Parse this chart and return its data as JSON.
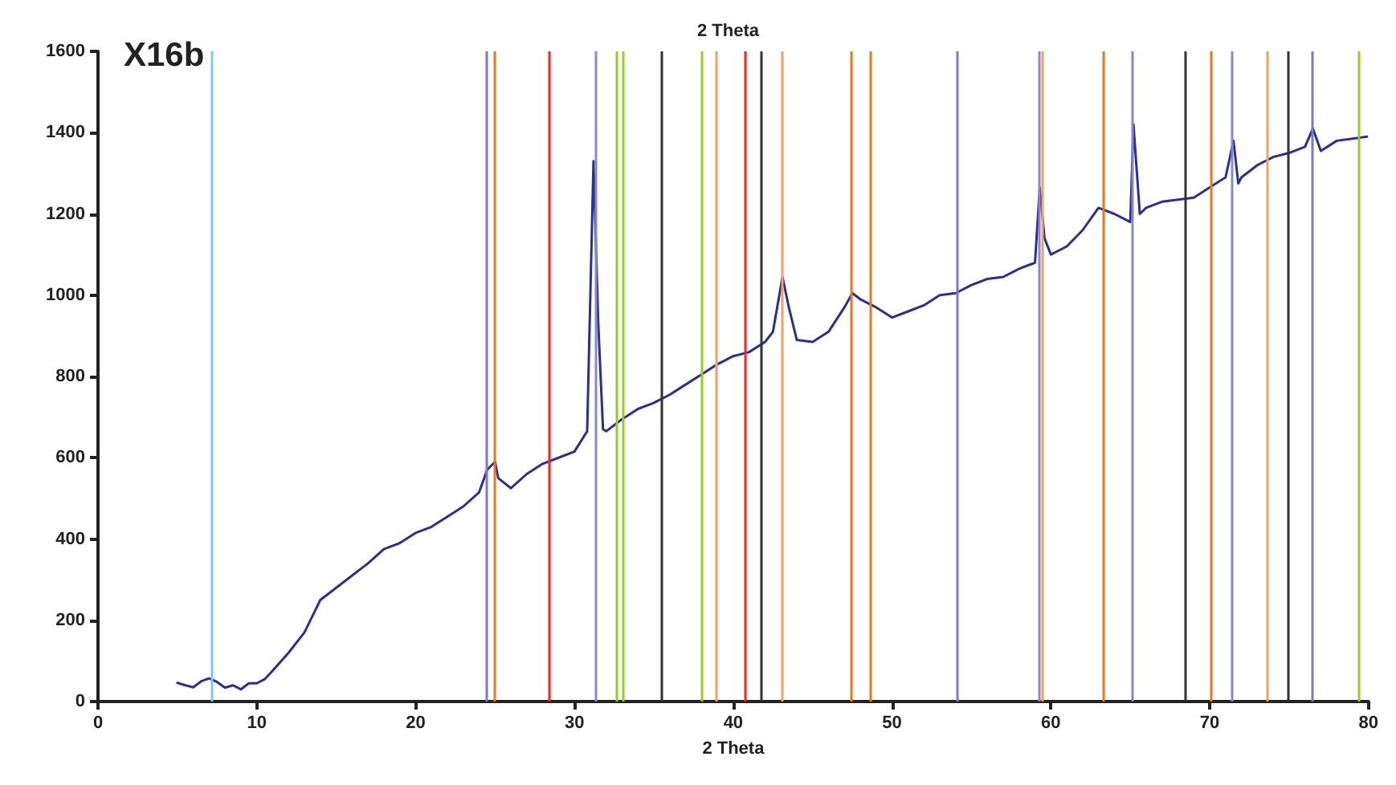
{
  "chart_data": {
    "type": "line",
    "title": "X16b",
    "xlabel": "2 Theta",
    "annotations": [
      "2 Theta"
    ],
    "xlim": [
      0,
      80
    ],
    "xticks": [
      0,
      10,
      20,
      30,
      40,
      50,
      60,
      70,
      80
    ],
    "ylim": [
      0,
      1600
    ],
    "yticks": [
      0,
      200,
      400,
      600,
      800,
      1000,
      1200,
      1400,
      1600
    ],
    "grid": false,
    "marker": "none",
    "line_style": "solid",
    "series": [
      {
        "color": "#2b2f8f",
        "x": [
          5,
          5.5,
          6,
          6.5,
          7,
          7.5,
          8,
          8.5,
          9,
          9.5,
          10,
          10.5,
          11,
          12,
          13,
          14,
          15,
          16,
          17,
          18,
          19,
          20,
          21,
          22,
          23,
          24,
          24.5,
          25,
          25.2,
          26,
          27,
          28,
          29,
          30,
          30.8,
          31.2,
          31.5,
          31.8,
          32,
          33,
          34,
          35,
          36,
          37,
          38,
          39,
          40,
          41,
          42,
          42.5,
          43.1,
          43.5,
          44,
          45,
          46,
          47,
          47.5,
          48,
          49,
          50,
          51,
          52,
          53,
          54,
          55,
          56,
          57,
          58,
          59,
          59.3,
          59.6,
          60,
          61,
          62,
          63,
          64,
          65,
          65.2,
          65.6,
          66,
          67,
          68,
          69,
          70,
          71,
          71.5,
          71.8,
          72,
          73,
          74,
          75,
          76,
          76.5,
          77,
          78,
          79,
          79.9
        ],
        "values": [
          46,
          40,
          35,
          50,
          57,
          48,
          34,
          40,
          30,
          45,
          45,
          55,
          76,
          120,
          170,
          250,
          280,
          310,
          340,
          375,
          390,
          415,
          430,
          455,
          480,
          515,
          570,
          590,
          550,
          525,
          560,
          585,
          600,
          615,
          665,
          1330,
          930,
          670,
          665,
          695,
          720,
          735,
          755,
          780,
          805,
          830,
          850,
          860,
          885,
          910,
          1045,
          970,
          890,
          885,
          910,
          970,
          1005,
          990,
          970,
          945,
          960,
          975,
          1000,
          1005,
          1025,
          1040,
          1045,
          1065,
          1080,
          1265,
          1140,
          1100,
          1120,
          1160,
          1215,
          1200,
          1180,
          1420,
          1200,
          1215,
          1230,
          1235,
          1240,
          1265,
          1290,
          1380,
          1275,
          1290,
          1320,
          1340,
          1350,
          1365,
          1410,
          1355,
          1380,
          1385,
          1390
        ]
      }
    ],
    "ref_lines": [
      {
        "axis": "x",
        "value": 7.2,
        "color": "#7fc8e8"
      },
      {
        "axis": "x",
        "value": 24.5,
        "color": "#7b7bc8"
      },
      {
        "axis": "x",
        "value": 25.0,
        "color": "#f07818"
      },
      {
        "axis": "x",
        "value": 28.4,
        "color": "#ff2020"
      },
      {
        "axis": "x",
        "value": 31.3,
        "color": "#8888cc"
      },
      {
        "axis": "x",
        "value": 32.6,
        "color": "#99cc22"
      },
      {
        "axis": "x",
        "value": 33.1,
        "color": "#99cc22"
      },
      {
        "axis": "x",
        "value": 35.5,
        "color": "#333333"
      },
      {
        "axis": "x",
        "value": 38.0,
        "color": "#99cc22"
      },
      {
        "axis": "x",
        "value": 38.9,
        "color": "#f4a060"
      },
      {
        "axis": "x",
        "value": 40.7,
        "color": "#ff2020"
      },
      {
        "axis": "x",
        "value": 41.8,
        "color": "#333333"
      },
      {
        "axis": "x",
        "value": 43.1,
        "color": "#f4a060"
      },
      {
        "axis": "x",
        "value": 47.4,
        "color": "#f07818"
      },
      {
        "axis": "x",
        "value": 48.6,
        "color": "#f07818"
      },
      {
        "axis": "x",
        "value": 54.1,
        "color": "#7b7bc8"
      },
      {
        "axis": "x",
        "value": 59.2,
        "color": "#8888cc"
      },
      {
        "axis": "x",
        "value": 59.5,
        "color": "#f4a060"
      },
      {
        "axis": "x",
        "value": 63.3,
        "color": "#f07818"
      },
      {
        "axis": "x",
        "value": 65.1,
        "color": "#8888cc"
      },
      {
        "axis": "x",
        "value": 68.5,
        "color": "#333333"
      },
      {
        "axis": "x",
        "value": 70.1,
        "color": "#f07818"
      },
      {
        "axis": "x",
        "value": 71.4,
        "color": "#8888cc"
      },
      {
        "axis": "x",
        "value": 73.6,
        "color": "#f4a060"
      },
      {
        "axis": "x",
        "value": 74.9,
        "color": "#333333"
      },
      {
        "axis": "x",
        "value": 76.4,
        "color": "#7b7bc8"
      },
      {
        "axis": "x",
        "value": 79.4,
        "color": "#99cc22"
      }
    ]
  }
}
